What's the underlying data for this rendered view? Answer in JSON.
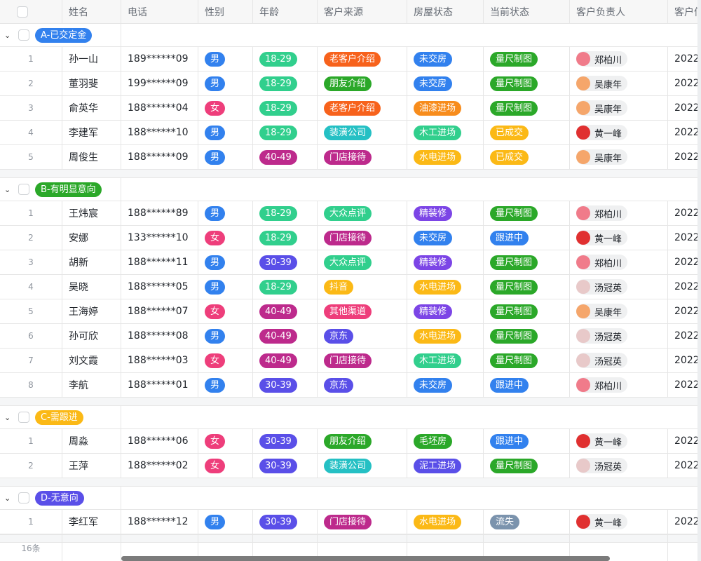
{
  "header": {
    "columns": [
      "姓名",
      "电话",
      "性别",
      "年龄",
      "客户来源",
      "房屋状态",
      "当前状态",
      "客户负责人",
      "客户信"
    ]
  },
  "colors": {
    "男": "#3281ee",
    "女": "#ee3e7b",
    "18-29": "#31cf8d",
    "30-39": "#5a4fe8",
    "40-49": "#bd2a8c",
    "老客户介绍": "#f7621c",
    "朋友介绍": "#2ba829",
    "装潢公司": "#25c0c4",
    "门店接待": "#bd2a8c",
    "大众点评": "#31cf8d",
    "抖音": "#fbb916",
    "其他渠道": "#ee3e7b",
    "京东": "#5a4fe8",
    "未交房": "#3281ee",
    "油漆进场": "#f78c1c",
    "木工进场": "#31cf8d",
    "水电进场": "#fbb916",
    "精装修": "#7c45e6",
    "毛坯房": "#2ba829",
    "泥工进场": "#5a4fe8",
    "量尺制图": "#2ba829",
    "已成交": "#fbb916",
    "跟进中": "#3281ee",
    "流失": "#7b93ad"
  },
  "owners": {
    "郑柏川": "#f07b8a",
    "吴康年": "#f5a66b",
    "黄一峰": "#e03030",
    "汤冠英": "#e8c9c9"
  },
  "groups": [
    {
      "label": "A-已交定金",
      "color": "#3281ee",
      "rows": [
        [
          "1",
          "孙一山",
          "189******09",
          "男",
          "18-29",
          "老客户介绍",
          "未交房",
          "量尺制图",
          "郑柏川",
          "2022"
        ],
        [
          "2",
          "董羽斐",
          "199******09",
          "男",
          "18-29",
          "朋友介绍",
          "未交房",
          "量尺制图",
          "吴康年",
          "2022"
        ],
        [
          "3",
          "俞英华",
          "188******04",
          "女",
          "18-29",
          "老客户介绍",
          "油漆进场",
          "量尺制图",
          "吴康年",
          "2022"
        ],
        [
          "4",
          "李建军",
          "188******10",
          "男",
          "18-29",
          "装潢公司",
          "木工进场",
          "已成交",
          "黄一峰",
          "2022"
        ],
        [
          "5",
          "周俊生",
          "188******09",
          "男",
          "40-49",
          "门店接待",
          "水电进场",
          "已成交",
          "吴康年",
          "2022"
        ]
      ]
    },
    {
      "label": "B-有明显意向",
      "color": "#2ba829",
      "rows": [
        [
          "1",
          "王炜宸",
          "188******89",
          "男",
          "18-29",
          "大众点评",
          "精装修",
          "量尺制图",
          "郑柏川",
          "2022"
        ],
        [
          "2",
          "安娜",
          "133******10",
          "女",
          "18-29",
          "门店接待",
          "未交房",
          "跟进中",
          "黄一峰",
          "2022"
        ],
        [
          "3",
          "胡新",
          "188******11",
          "男",
          "30-39",
          "大众点评",
          "精装修",
          "量尺制图",
          "郑柏川",
          "2022"
        ],
        [
          "4",
          "吴晓",
          "188******05",
          "男",
          "18-29",
          "抖音",
          "水电进场",
          "量尺制图",
          "汤冠英",
          "2022"
        ],
        [
          "5",
          "王海婷",
          "188******07",
          "女",
          "40-49",
          "其他渠道",
          "精装修",
          "量尺制图",
          "吴康年",
          "2022"
        ],
        [
          "6",
          "孙可欣",
          "188******08",
          "男",
          "40-49",
          "京东",
          "水电进场",
          "量尺制图",
          "汤冠英",
          "2022"
        ],
        [
          "7",
          "刘文霞",
          "188******03",
          "女",
          "40-49",
          "门店接待",
          "木工进场",
          "量尺制图",
          "汤冠英",
          "2022"
        ],
        [
          "8",
          "李航",
          "188******01",
          "男",
          "30-39",
          "京东",
          "未交房",
          "跟进中",
          "郑柏川",
          "2022"
        ]
      ]
    },
    {
      "label": "C-需跟进",
      "color": "#fbb916",
      "rows": [
        [
          "1",
          "周淼",
          "188******06",
          "女",
          "30-39",
          "朋友介绍",
          "毛坯房",
          "跟进中",
          "黄一峰",
          "2022"
        ],
        [
          "2",
          "王萍",
          "188******02",
          "女",
          "30-39",
          "装潢公司",
          "泥工进场",
          "量尺制图",
          "汤冠英",
          "2022"
        ]
      ]
    },
    {
      "label": "D-无意向",
      "color": "#5a4fe8",
      "rows": [
        [
          "1",
          "李红军",
          "188******12",
          "男",
          "30-39",
          "门店接待",
          "水电进场",
          "流失",
          "黄一峰",
          "2022"
        ]
      ]
    }
  ],
  "footer": {
    "count": "16条"
  }
}
